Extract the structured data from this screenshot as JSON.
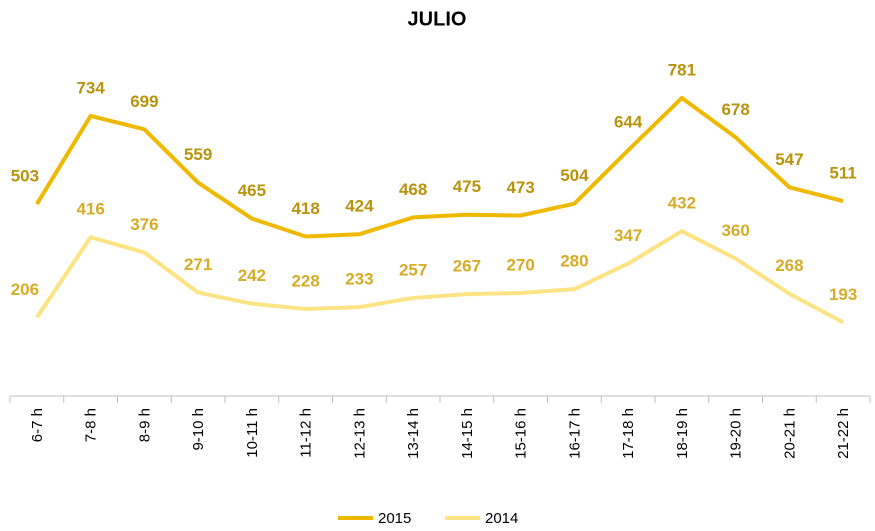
{
  "chart_data": {
    "type": "line",
    "title": "JULIO",
    "categories": [
      "6-7 h",
      "7-8 h",
      "8-9 h",
      "9-10 h",
      "10-11 h",
      "11-12 h",
      "12-13 h",
      "13-14 h",
      "14-15 h",
      "15-16 h",
      "16-17 h",
      "17-18 h",
      "18-19 h",
      "19-20 h",
      "20-21 h",
      "21-22 h"
    ],
    "series": [
      {
        "name": "2015",
        "color": "#efb900",
        "label_color": "#b8930c",
        "values": [
          503,
          734,
          699,
          559,
          465,
          418,
          424,
          468,
          475,
          473,
          504,
          644,
          781,
          678,
          547,
          511
        ]
      },
      {
        "name": "2014",
        "color": "#fde384",
        "label_color": "#d6ac27",
        "values": [
          206,
          416,
          376,
          271,
          242,
          228,
          233,
          257,
          267,
          270,
          280,
          347,
          432,
          360,
          268,
          193
        ]
      }
    ],
    "ylim": [
      0,
      950
    ],
    "legend": "bottom"
  }
}
